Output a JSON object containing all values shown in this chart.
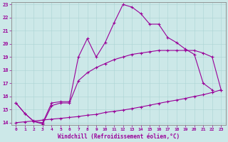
{
  "xlabel": "Windchill (Refroidissement éolien,°C)",
  "bg_color": "#cce8e8",
  "line_color": "#990099",
  "xlim": [
    -0.5,
    23.5
  ],
  "ylim": [
    13.85,
    23.15
  ],
  "xticks": [
    0,
    1,
    2,
    3,
    4,
    5,
    6,
    7,
    8,
    9,
    10,
    11,
    12,
    13,
    14,
    15,
    16,
    17,
    18,
    19,
    20,
    21,
    22,
    23
  ],
  "yticks": [
    14,
    15,
    16,
    17,
    18,
    19,
    20,
    21,
    22,
    23
  ],
  "series": [
    {
      "x": [
        0,
        1,
        2,
        3,
        4,
        5,
        6,
        7,
        8,
        9,
        10,
        11,
        12,
        13,
        14,
        15,
        16,
        17,
        18,
        19,
        20,
        21,
        22
      ],
      "y": [
        15.5,
        14.7,
        14.1,
        14.0,
        15.5,
        15.6,
        15.6,
        19.0,
        20.4,
        19.0,
        20.1,
        21.6,
        23.0,
        22.8,
        22.3,
        21.5,
        21.5,
        20.5,
        20.1,
        19.6,
        19.2,
        17.0,
        16.5
      ]
    },
    {
      "x": [
        0,
        1,
        2,
        3,
        4,
        5,
        6,
        7,
        8,
        9,
        10,
        11,
        12,
        13,
        14,
        15,
        16,
        17,
        18,
        19,
        20,
        21,
        22,
        23
      ],
      "y": [
        15.5,
        14.7,
        14.1,
        13.9,
        15.3,
        15.5,
        15.5,
        17.2,
        17.8,
        18.2,
        18.5,
        18.8,
        19.0,
        19.2,
        19.3,
        19.4,
        19.5,
        19.5,
        19.5,
        19.5,
        19.5,
        19.3,
        19.0,
        16.5
      ]
    },
    {
      "x": [
        0,
        1,
        2,
        3,
        4,
        5,
        6,
        7,
        8,
        9,
        10,
        11,
        12,
        13,
        14,
        15,
        16,
        17,
        18,
        19,
        20,
        21,
        22,
        23
      ],
      "y": [
        14.0,
        14.07,
        14.13,
        14.2,
        14.27,
        14.33,
        14.4,
        14.47,
        14.57,
        14.63,
        14.78,
        14.87,
        14.96,
        15.07,
        15.2,
        15.33,
        15.47,
        15.6,
        15.72,
        15.85,
        16.0,
        16.13,
        16.3,
        16.5
      ]
    }
  ]
}
